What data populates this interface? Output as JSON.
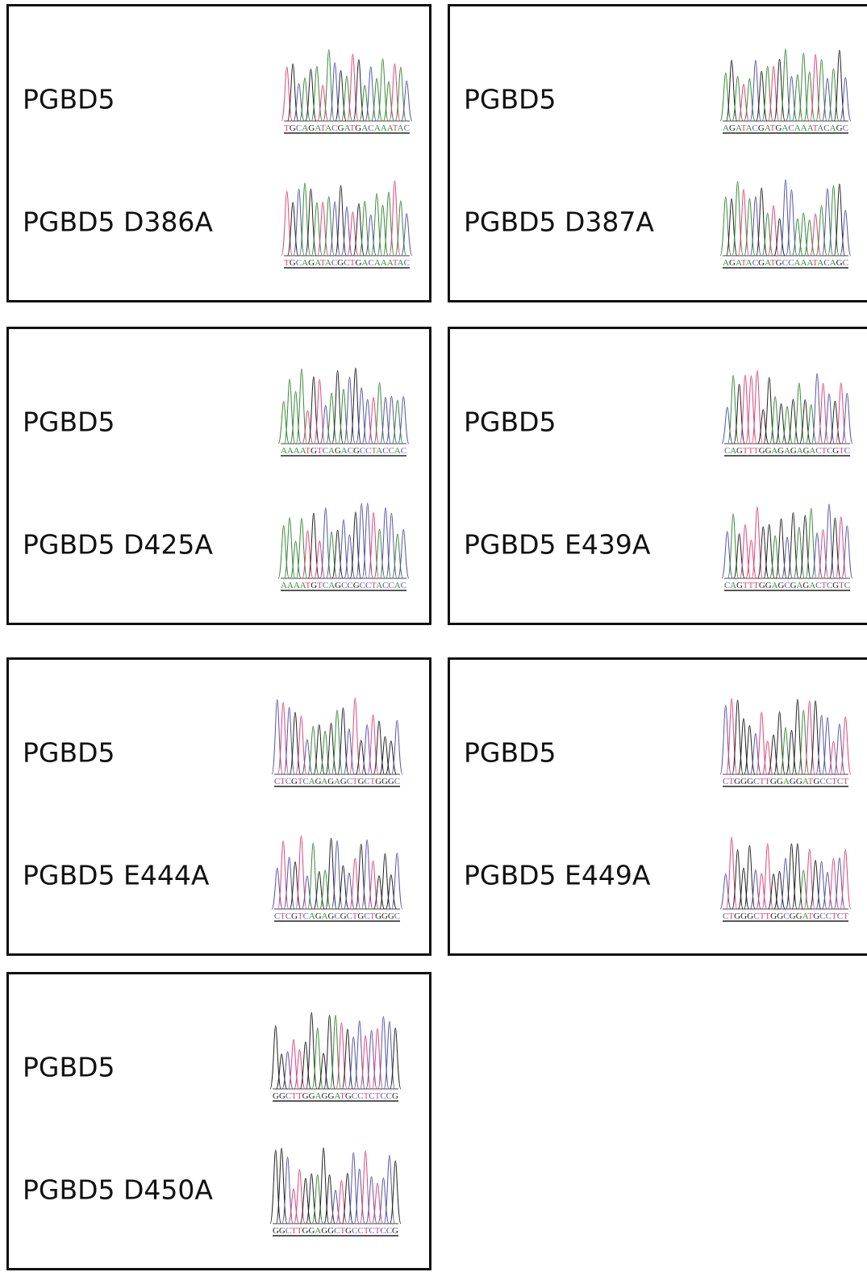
{
  "panels": [
    {
      "rows": [
        {
          "label": "PGBD5",
          "sequence": "TGCAGATACGATGACAAATAC"
        },
        {
          "label": "PGBD5 D386A",
          "sequence": "TGCAGATACGCTGACAAATAC"
        }
      ]
    },
    {
      "rows": [
        {
          "label": "PGBD5",
          "sequence": "AGATACGATGACAAATACAGC"
        },
        {
          "label": "PGBD5 D387A",
          "sequence": "AGATACGATGCCAAATACAGC"
        }
      ]
    },
    {
      "rows": [
        {
          "label": "PGBD5",
          "sequence": "AAAATGTCAGACGCCTACCAC"
        },
        {
          "label": "PGBD5 D425A",
          "sequence": "AAAATGTCAGCCGCCTACCAC"
        }
      ]
    },
    {
      "rows": [
        {
          "label": "PGBD5",
          "sequence": "CAGTTTGGAGAGAGACTCGTC"
        },
        {
          "label": "PGBD5 E439A",
          "sequence": "CAGTTTGGAGCGAGACTCGTC"
        }
      ]
    },
    {
      "rows": [
        {
          "label": "PGBD5",
          "sequence": "CTCGTCAGAGAGCTGCTGGGC"
        },
        {
          "label": "PGBD5 E444A",
          "sequence": "CTCGTCAGAGCGCTGCTGGGC"
        }
      ]
    },
    {
      "rows": [
        {
          "label": "PGBD5",
          "sequence": "CTGGGCTTGGAGGATGCCTCT"
        },
        {
          "label": "PGBD5 E449A",
          "sequence": "CTGGGCTTGGCGGATGCCTCT"
        }
      ]
    },
    {
      "rows": [
        {
          "label": "PGBD5",
          "sequence": "GGCTTGGAGGATGCCTCTCCG"
        },
        {
          "label": "PGBD5 D450A",
          "sequence": "GGCTTGGAGGCTGCCTCTCCG"
        }
      ]
    }
  ]
}
